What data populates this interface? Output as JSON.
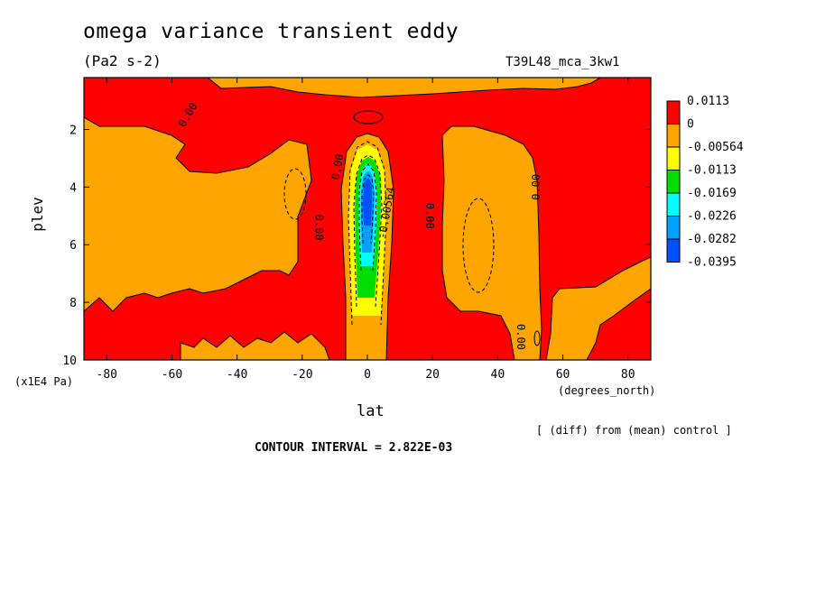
{
  "chart_data": {
    "type": "heatmap",
    "title": "omega variance transient eddy",
    "units": "(Pa2 s-2)",
    "run_label": "T39L48_mca_3kw1",
    "xlabel": "lat",
    "x_units": "(degrees_north)",
    "ylabel": "plev",
    "y_units": "(x1E4 Pa)",
    "xlim": [
      -87,
      87
    ],
    "ylim": [
      10,
      0.2
    ],
    "x_ticks": [
      -80,
      -60,
      -40,
      -20,
      0,
      20,
      40,
      60,
      80
    ],
    "x_tick_labels": [
      "-80",
      "-60",
      "-40",
      "-20",
      "0",
      "20",
      "40",
      "60",
      "80"
    ],
    "y_ticks": [
      2,
      4,
      6,
      8,
      10
    ],
    "y_tick_labels": [
      "2",
      "4",
      "6",
      "8",
      "10"
    ],
    "legend_placement": "right",
    "legend": [
      {
        "label": "0.0113",
        "color": "#ff0000"
      },
      {
        "label": "0",
        "color": "#ffa500"
      },
      {
        "label": "-0.00564",
        "color": "#ffff00"
      },
      {
        "label": "-0.0113",
        "color": "#00dd00"
      },
      {
        "label": "-0.0169",
        "color": "#00ffff"
      },
      {
        "label": "-0.0226",
        "color": "#00a0ff"
      },
      {
        "label": "-0.0282",
        "color": "#0050ff"
      },
      {
        "label": "-0.0395",
        "color": ""
      }
    ],
    "contour_labels": [
      {
        "text": "0.00",
        "lat": -55,
        "plev": 1.5,
        "angle": -60
      },
      {
        "text": "0.00",
        "lat": -9,
        "plev": 3.3,
        "angle": -80
      },
      {
        "text": "0.00",
        "lat": -15,
        "plev": 5.4,
        "angle": 90
      },
      {
        "text": "0.00",
        "lat": 19,
        "plev": 5.0,
        "angle": 90
      },
      {
        "text": "0.00",
        "lat": 52,
        "plev": 4.0,
        "angle": -90
      },
      {
        "text": "0.00",
        "lat": 47,
        "plev": 9.2,
        "angle": 90
      },
      {
        "text": "-0.00564",
        "lat": 6,
        "plev": 4.9,
        "angle": -80
      }
    ],
    "contour_interval": "CONTOUR INTERVAL = 2.822E-03",
    "diff_note": "[ (diff) from (mean) control ]"
  }
}
